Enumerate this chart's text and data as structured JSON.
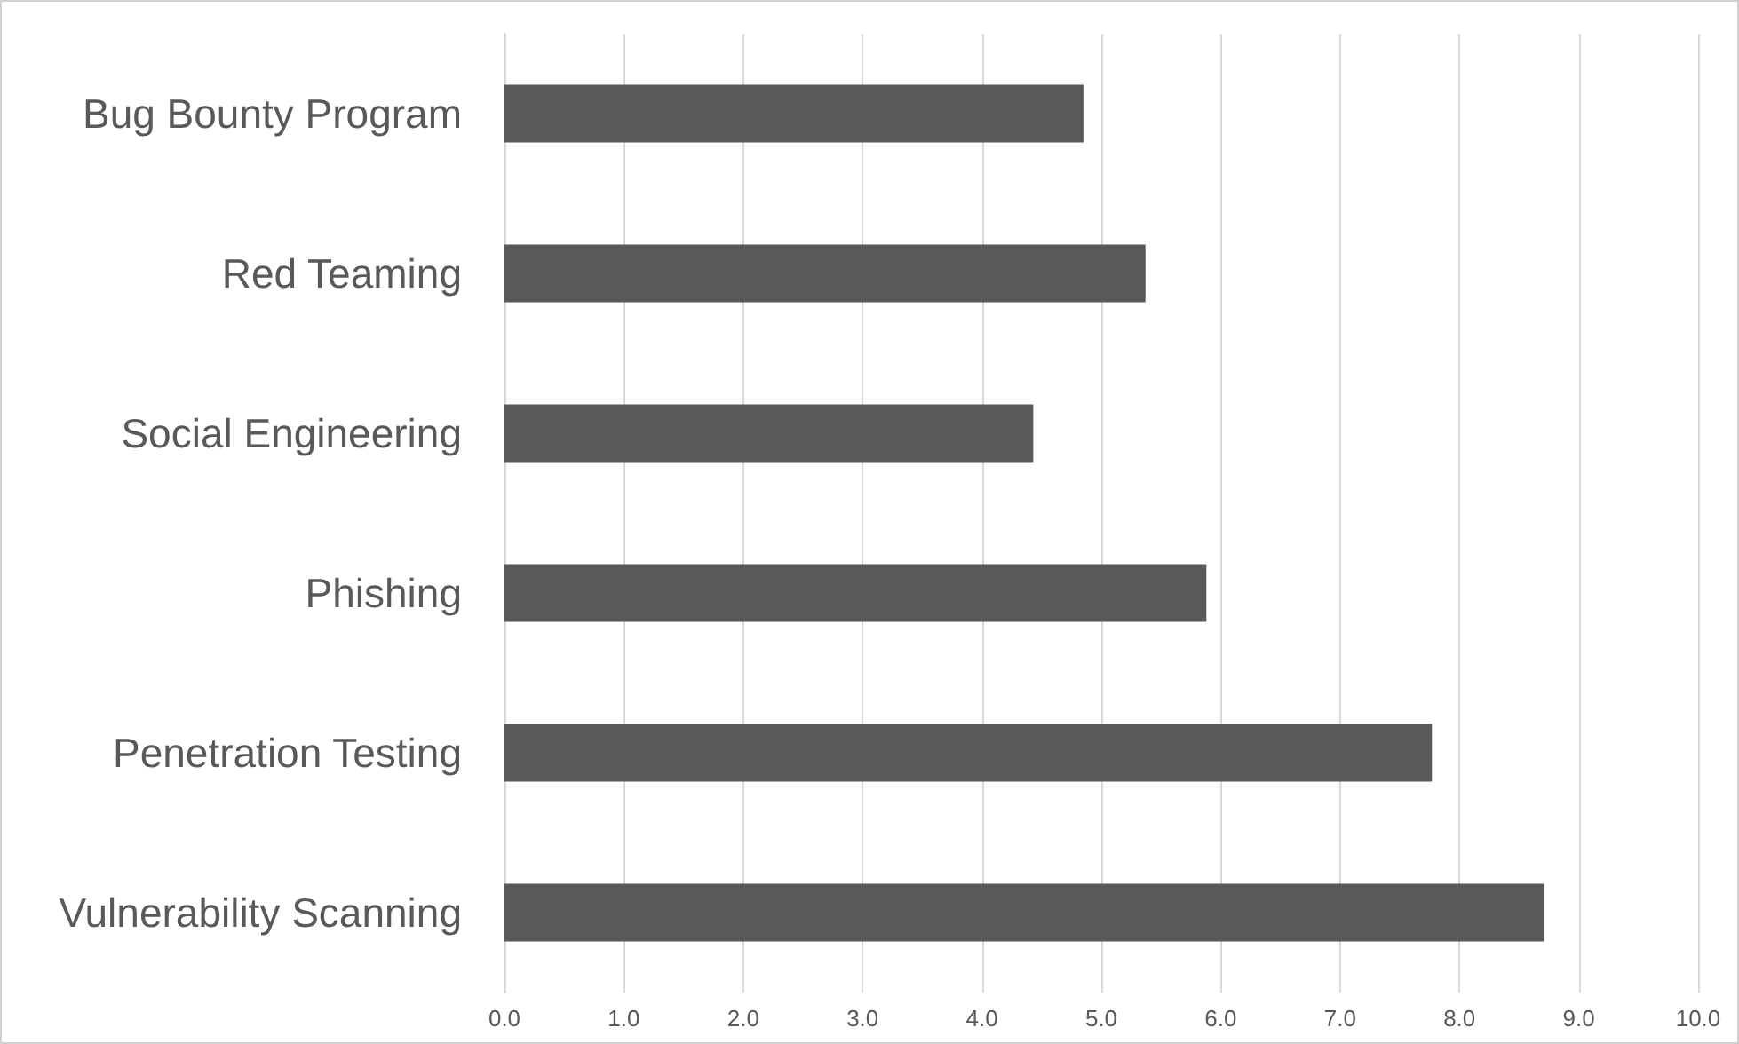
{
  "chart_data": {
    "type": "bar",
    "orientation": "horizontal",
    "categories": [
      "Bug Bounty Program",
      "Red Teaming",
      "Social Engineering",
      "Phishing",
      "Penetration Testing",
      "Vulnerability Scanning"
    ],
    "values": [
      4.85,
      5.37,
      4.43,
      5.88,
      7.77,
      8.71
    ],
    "color": "#595959",
    "xlim": [
      0,
      10
    ],
    "xticks": [
      {
        "value": 0,
        "label": "0.0"
      },
      {
        "value": 1,
        "label": "1.0"
      },
      {
        "value": 2,
        "label": "2.0"
      },
      {
        "value": 3,
        "label": "3.0"
      },
      {
        "value": 4,
        "label": "4.0"
      },
      {
        "value": 5,
        "label": "5.0"
      },
      {
        "value": 6,
        "label": "6.0"
      },
      {
        "value": 7,
        "label": "7.0"
      },
      {
        "value": 8,
        "label": "8.0"
      },
      {
        "value": 9,
        "label": "9.0"
      },
      {
        "value": 10,
        "label": "10.0"
      }
    ],
    "grid": "x"
  }
}
